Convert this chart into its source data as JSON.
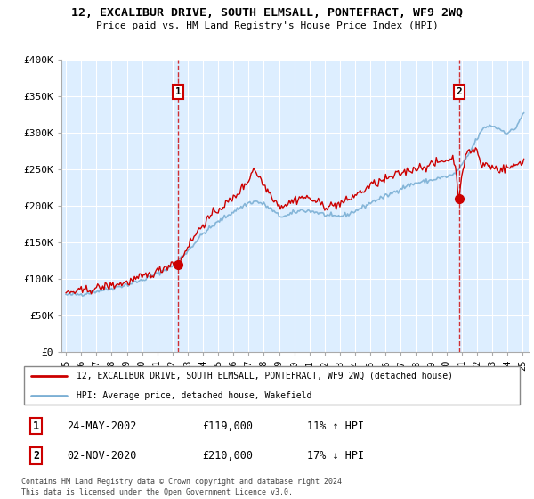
{
  "title": "12, EXCALIBUR DRIVE, SOUTH ELMSALL, PONTEFRACT, WF9 2WQ",
  "subtitle": "Price paid vs. HM Land Registry's House Price Index (HPI)",
  "legend_line1": "12, EXCALIBUR DRIVE, SOUTH ELMSALL, PONTEFRACT, WF9 2WQ (detached house)",
  "legend_line2": "HPI: Average price, detached house, Wakefield",
  "annotation1_label": "1",
  "annotation1_date": "24-MAY-2002",
  "annotation1_price": "£119,000",
  "annotation1_hpi": "11% ↑ HPI",
  "annotation2_label": "2",
  "annotation2_date": "02-NOV-2020",
  "annotation2_price": "£210,000",
  "annotation2_hpi": "17% ↓ HPI",
  "footnote1": "Contains HM Land Registry data © Crown copyright and database right 2024.",
  "footnote2": "This data is licensed under the Open Government Licence v3.0.",
  "hpi_color": "#7bafd4",
  "price_color": "#cc0000",
  "marker_color": "#cc0000",
  "annotation_box_color": "#cc0000",
  "bg_color": "#ddeeff",
  "sale1_year": 2002.37,
  "sale1_price": 119000,
  "sale2_year": 2020.83,
  "sale2_price": 210000,
  "vline1_year": 2002.37,
  "vline2_year": 2020.83,
  "ylim": [
    0,
    400000
  ],
  "yticks": [
    0,
    50000,
    100000,
    150000,
    200000,
    250000,
    300000,
    350000,
    400000
  ],
  "ytick_labels": [
    "£0",
    "£50K",
    "£100K",
    "£150K",
    "£200K",
    "£250K",
    "£300K",
    "£350K",
    "£400K"
  ]
}
